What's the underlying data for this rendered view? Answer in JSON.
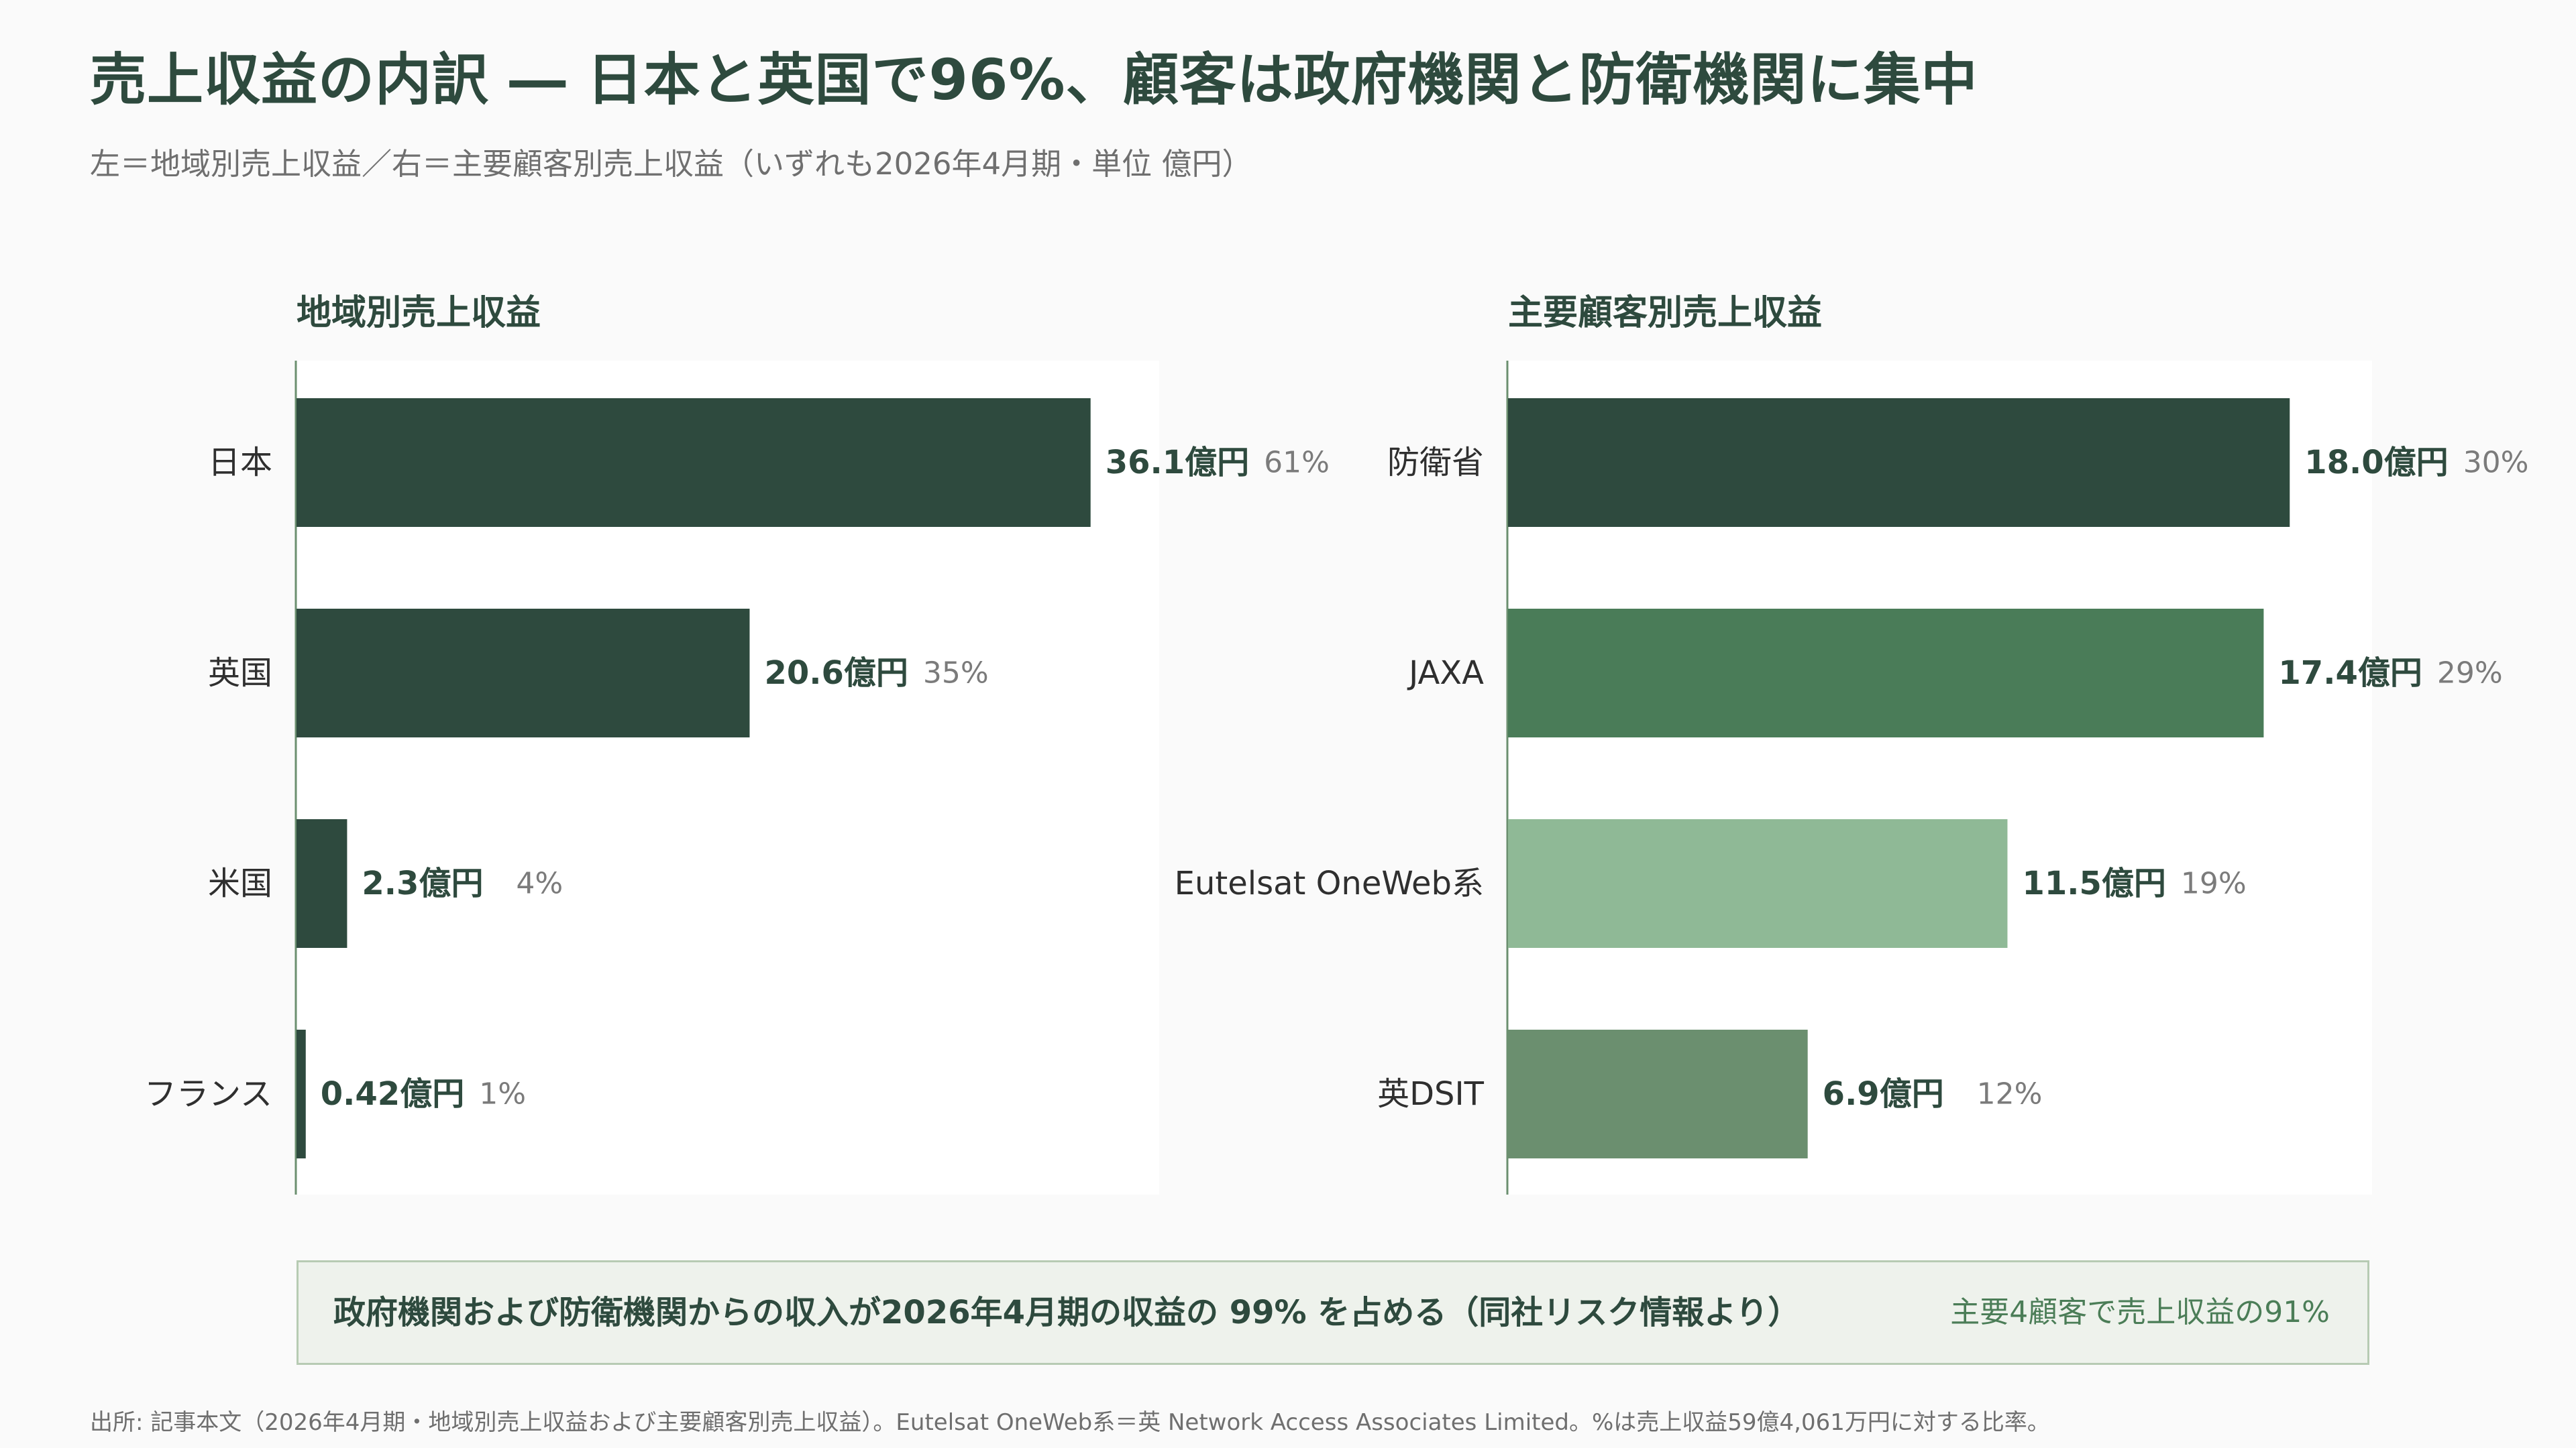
{
  "header": {
    "title": "売上収益の内訳 ― 日本と英国で96%、顧客は政府機関と防衛機関に集中",
    "subtitle": "左＝地域別売上収益／右＝主要顧客別売上収益（いずれも2026年4月期・単位 億円）"
  },
  "chart_data": [
    {
      "type": "bar",
      "orientation": "horizontal",
      "title": "地域別売上収益",
      "categories": [
        "日本",
        "英国",
        "米国",
        "フランス"
      ],
      "values": [
        36.1,
        20.6,
        2.3,
        0.42
      ],
      "value_labels": [
        "36.1億円",
        "20.6億円",
        "2.3億円",
        "0.42億円"
      ],
      "pct_labels": [
        "61%",
        "35%",
        "4%",
        "1%"
      ],
      "colors": [
        "#2e4a3e",
        "#2e4a3e",
        "#2e4a3e",
        "#2e4a3e"
      ],
      "xlim": [
        0,
        38
      ],
      "grid": false,
      "legend": "none"
    },
    {
      "type": "bar",
      "orientation": "horizontal",
      "title": "主要顧客別売上収益",
      "categories": [
        "防衛省",
        "JAXA",
        "Eutelsat OneWeb系",
        "英DSIT"
      ],
      "values": [
        18.0,
        17.4,
        11.5,
        6.9
      ],
      "value_labels": [
        "18.0億円",
        "17.4億円",
        "11.5億円",
        "6.9億円"
      ],
      "pct_labels": [
        "30%",
        "29%",
        "19%",
        "12%"
      ],
      "colors": [
        "#2e4a3e",
        "#4a7c58",
        "#8fb996",
        "#6b8f6f"
      ],
      "xlim": [
        0,
        19
      ],
      "grid": false,
      "legend": "none"
    }
  ],
  "callout": {
    "main": "政府機関および防衛機関からの収入が2026年4月期の収益の 99% を占める（同社リスク情報より）",
    "side": "主要4顧客で売上収益の91%"
  },
  "source": "出所: 記事本文（2026年4月期・地域別売上収益および主要顧客別売上収益）。Eutelsat OneWeb系＝英 Network Access Associates Limited。%は売上収益59億4,061万円に対する比率。",
  "colors": {
    "dark_green": "#2e4a3e",
    "mid_green": "#4a7c58",
    "light_green": "#8fb996",
    "sage_green": "#6b8f6f",
    "callout_bg": "#eef2ec"
  }
}
